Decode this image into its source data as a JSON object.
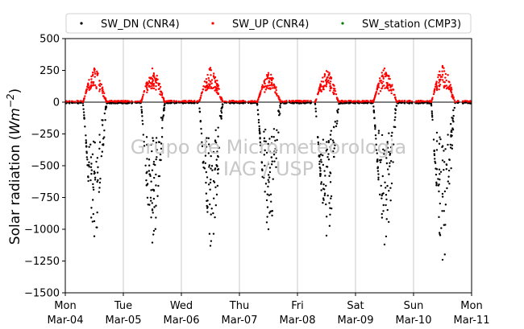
{
  "chart_data": {
    "type": "scatter",
    "title": "",
    "xlabel": "",
    "ylabel": "Solar radiation (Wm−2)",
    "ylabel_parts": {
      "pre": "Solar radiation (",
      "unit": "Wm",
      "sup": "−2",
      "post": ")"
    },
    "ylim": [
      -1500,
      500
    ],
    "yticks": [
      500,
      250,
      0,
      -250,
      -500,
      -750,
      -1000,
      -1250,
      -1500
    ],
    "ytick_labels": [
      "500",
      "250",
      "0",
      "−250",
      "−500",
      "−750",
      "−1000",
      "−1250",
      "−1500"
    ],
    "xlim": [
      "2018-03-04",
      "2018-03-11"
    ],
    "xticks": [
      {
        "day": "Mon",
        "date": "Mar-04"
      },
      {
        "day": "Tue",
        "date": "Mar-05"
      },
      {
        "day": "Wed",
        "date": "Mar-06"
      },
      {
        "day": "Thu",
        "date": "Mar-07"
      },
      {
        "day": "Fri",
        "date": "Mar-08"
      },
      {
        "day": "Sat",
        "date": "Mar-09"
      },
      {
        "day": "Sun",
        "date": "Mar-10"
      },
      {
        "day": "Mon",
        "date": "Mar-11"
      }
    ],
    "grid": {
      "x": true,
      "y": false
    },
    "zero_line": true,
    "legend": {
      "position": "top",
      "ncol": 3
    },
    "series": [
      {
        "name": "SW_DN (CNR4)",
        "color": "#000000",
        "daily_peak": [
          -1055,
          -1105,
          -1130,
          -1000,
          -1050,
          -1120,
          -1240
        ],
        "x": [
          "2018-03-04 09:00",
          "2018-03-04 10:00",
          "2018-03-04 11:00",
          "2018-03-04 12:00",
          "2018-03-04 13:00",
          "2018-03-04 14:00",
          "2018-03-04 15:00",
          "2018-03-04 16:00",
          "2018-03-05 09:00",
          "2018-03-05 10:00",
          "2018-03-05 11:00",
          "2018-03-05 12:00",
          "2018-03-05 13:00",
          "2018-03-05 14:00",
          "2018-03-05 15:00",
          "2018-03-06 09:00",
          "2018-03-06 10:00",
          "2018-03-06 11:00",
          "2018-03-06 12:00",
          "2018-03-06 13:00",
          "2018-03-06 14:00",
          "2018-03-06 15:00",
          "2018-03-07 09:00",
          "2018-03-07 10:00",
          "2018-03-07 11:00",
          "2018-03-07 12:00",
          "2018-03-07 13:00",
          "2018-03-07 14:00",
          "2018-03-08 09:00",
          "2018-03-08 10:00",
          "2018-03-08 11:00",
          "2018-03-08 12:00",
          "2018-03-08 13:00",
          "2018-03-08 14:00",
          "2018-03-08 15:00",
          "2018-03-09 09:00",
          "2018-03-09 10:00",
          "2018-03-09 11:00",
          "2018-03-09 12:00",
          "2018-03-09 13:00",
          "2018-03-09 14:00",
          "2018-03-09 15:00",
          "2018-03-10 09:00",
          "2018-03-10 10:00",
          "2018-03-10 11:00",
          "2018-03-10 12:00",
          "2018-03-10 13:00",
          "2018-03-10 14:00",
          "2018-03-10 15:00"
        ],
        "y": [
          -200,
          -450,
          -550,
          -1055,
          -500,
          -600,
          -400,
          -250,
          -250,
          -600,
          -1000,
          -1105,
          -800,
          -600,
          -300,
          -300,
          -700,
          -1000,
          -1130,
          -750,
          -500,
          -250,
          -250,
          -550,
          -700,
          -1000,
          -900,
          -400,
          -250,
          -500,
          -850,
          -1050,
          -800,
          -650,
          -300,
          -300,
          -600,
          -900,
          -1120,
          -750,
          -500,
          -250,
          -300,
          -650,
          -1000,
          -1240,
          -900,
          -550,
          -250
        ]
      },
      {
        "name": "SW_UP (CNR4)",
        "color": "#ff0000",
        "daily_peak": [
          265,
          265,
          270,
          230,
          245,
          265,
          285
        ],
        "x": [
          "2018-03-04 09:00",
          "2018-03-04 11:00",
          "2018-03-04 12:00",
          "2018-03-04 13:00",
          "2018-03-04 15:00",
          "2018-03-05 09:00",
          "2018-03-05 11:00",
          "2018-03-05 12:00",
          "2018-03-05 13:00",
          "2018-03-05 15:00",
          "2018-03-06 09:00",
          "2018-03-06 11:00",
          "2018-03-06 12:00",
          "2018-03-06 13:00",
          "2018-03-06 15:00",
          "2018-03-07 09:00",
          "2018-03-07 11:00",
          "2018-03-07 12:00",
          "2018-03-07 13:00",
          "2018-03-07 15:00",
          "2018-03-08 09:00",
          "2018-03-08 11:00",
          "2018-03-08 12:00",
          "2018-03-08 13:00",
          "2018-03-08 15:00",
          "2018-03-09 09:00",
          "2018-03-09 11:00",
          "2018-03-09 12:00",
          "2018-03-09 13:00",
          "2018-03-09 15:00",
          "2018-03-10 09:00",
          "2018-03-10 11:00",
          "2018-03-10 12:00",
          "2018-03-10 13:00",
          "2018-03-10 15:00"
        ],
        "y": [
          60,
          200,
          265,
          150,
          90,
          50,
          200,
          265,
          220,
          60,
          70,
          230,
          270,
          200,
          80,
          40,
          190,
          230,
          150,
          50,
          60,
          200,
          245,
          170,
          70,
          60,
          210,
          265,
          180,
          80,
          70,
          230,
          285,
          200,
          80
        ]
      },
      {
        "name": "SW_station (CMP3)",
        "color": "#008000",
        "x": [],
        "y": []
      }
    ],
    "watermark": [
      "Grupo de Micrometeorologia",
      "IAG / USP"
    ]
  }
}
